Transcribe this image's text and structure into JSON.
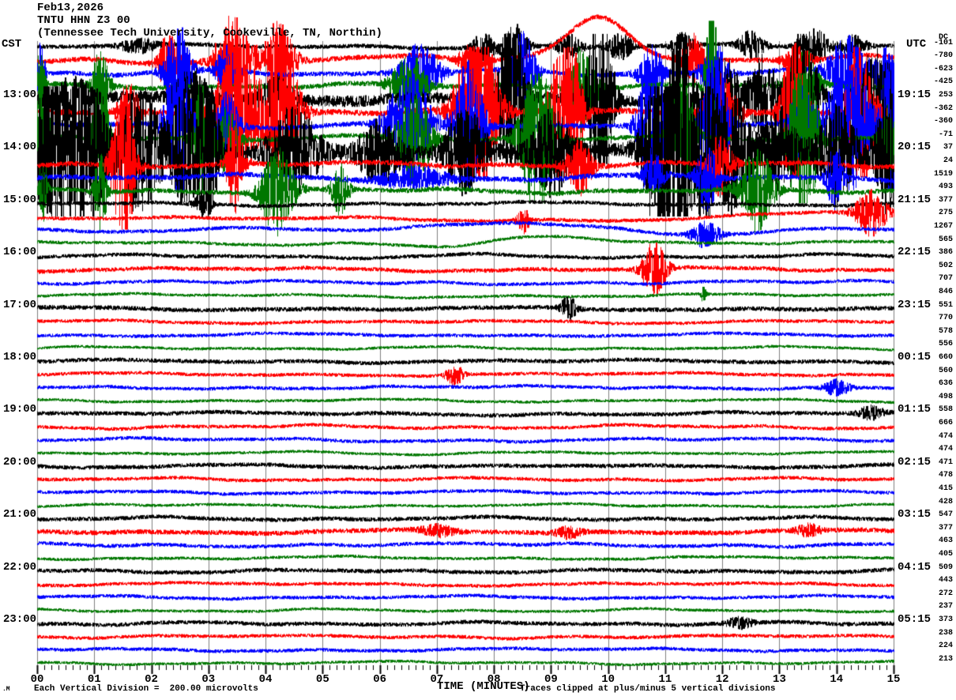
{
  "title": {
    "date": "Feb13,2026",
    "station": "TNTU HHN Z3 00",
    "location": "(Tennessee Tech University, Cookeville, TN, Northin)"
  },
  "axes": {
    "left_header": "CST",
    "right_header": "UTC",
    "dc_header": "DC",
    "x_label": "TIME (MINUTES)",
    "x_tick_labels": [
      "00",
      "01",
      "02",
      "03",
      "04",
      "05",
      "06",
      "07",
      "08",
      "09",
      "10",
      "11",
      "12",
      "13",
      "14",
      "15"
    ]
  },
  "footer": {
    "tiny_glyph": ".M",
    "left_note": "Each Vertical Division =  200.00 microvolts",
    "right_note": "Traces clipped at plus/minus 5 vertical divisions"
  },
  "colors": {
    "trace_cycle": [
      "#000000",
      "#ff0000",
      "#0000ff",
      "#007700"
    ],
    "grid": "#808080",
    "background": "#ffffff",
    "text": "#000000"
  },
  "chart_data": {
    "type": "line",
    "kind": "helicorder",
    "x_axis": {
      "label": "TIME (MINUTES)",
      "min": 0,
      "max": 15,
      "minor_ticks_per_minute": 8
    },
    "vertical_division_microvolts": 200.0,
    "clip_divisions": 5,
    "rows": [
      {
        "cst": "",
        "utc": "",
        "dc": -101,
        "color": "black",
        "noise": 2.5,
        "wander": 3,
        "bursts": [
          [
            1.8,
            8,
            0.5
          ],
          [
            7.8,
            20,
            0.25
          ],
          [
            8.35,
            28,
            0.3
          ],
          [
            9.3,
            14,
            0.3
          ],
          [
            10.2,
            16,
            0.3
          ],
          [
            11.3,
            16,
            0.25
          ],
          [
            12.5,
            18,
            0.3
          ],
          [
            13.6,
            22,
            0.35
          ],
          [
            14.3,
            14,
            0.3
          ]
        ],
        "swells": []
      },
      {
        "cst": "",
        "utc": "",
        "dc": -780,
        "color": "red",
        "noise": 3,
        "wander": 6,
        "bursts": [
          [
            2.3,
            40,
            0.25
          ],
          [
            3.4,
            55,
            0.4
          ],
          [
            4.2,
            45,
            0.4
          ],
          [
            7.6,
            20,
            0.3
          ],
          [
            11.5,
            30,
            0.3
          ],
          [
            13.3,
            20,
            0.3
          ]
        ],
        "swells": [
          [
            9.85,
            56,
            0.55
          ]
        ]
      },
      {
        "cst": "",
        "utc": "",
        "dc": -623,
        "color": "blue",
        "noise": 2.8,
        "wander": 5,
        "bursts": [
          [
            0.05,
            40,
            0.1
          ],
          [
            2.45,
            60,
            0.3
          ],
          [
            3.3,
            30,
            0.25
          ],
          [
            6.7,
            40,
            0.45
          ],
          [
            8.5,
            50,
            0.3
          ],
          [
            10.75,
            35,
            0.3
          ],
          [
            11.85,
            45,
            0.3
          ],
          [
            14.2,
            45,
            0.5
          ],
          [
            14.85,
            40,
            0.25
          ]
        ],
        "swells": []
      },
      {
        "cst": "",
        "utc": "",
        "dc": -425,
        "color": "green",
        "noise": 3,
        "wander": 4,
        "bursts": [
          [
            0.05,
            50,
            0.1
          ],
          [
            1.1,
            45,
            0.2
          ],
          [
            6.5,
            40,
            0.4
          ],
          [
            9.55,
            55,
            0.35
          ],
          [
            11.8,
            120,
            0.15
          ],
          [
            13.4,
            45,
            0.35
          ]
        ],
        "swells": []
      },
      {
        "cst": "13:00",
        "utc": "19:15",
        "dc": 253,
        "color": "black",
        "noise": 7,
        "wander": 4,
        "bursts": [
          [
            0.6,
            25,
            0.5
          ],
          [
            2.7,
            35,
            0.4
          ],
          [
            4.2,
            25,
            0.4
          ],
          [
            8.3,
            130,
            0.3
          ],
          [
            9.85,
            130,
            0.3
          ],
          [
            11.27,
            120,
            0.25
          ],
          [
            12.0,
            55,
            0.4
          ],
          [
            12.7,
            50,
            0.35
          ],
          [
            13.4,
            110,
            0.3
          ],
          [
            14.7,
            70,
            0.4
          ]
        ],
        "swells": []
      },
      {
        "cst": "",
        "utc": "",
        "dc": -362,
        "color": "red",
        "noise": 3.5,
        "wander": 4,
        "bursts": [
          [
            1.6,
            38,
            0.25
          ],
          [
            3.5,
            105,
            0.5
          ],
          [
            4.3,
            85,
            0.4
          ],
          [
            7.7,
            115,
            0.5
          ],
          [
            9.25,
            125,
            0.35
          ],
          [
            11.95,
            55,
            0.4
          ],
          [
            13.25,
            105,
            0.3
          ],
          [
            14.4,
            100,
            0.35
          ]
        ],
        "swells": []
      },
      {
        "cst": "",
        "utc": "",
        "dc": -360,
        "color": "blue",
        "noise": 3,
        "wander": 4,
        "bursts": [
          [
            2.45,
            125,
            0.3
          ],
          [
            3.3,
            45,
            0.3
          ],
          [
            6.5,
            70,
            0.5
          ],
          [
            7.55,
            85,
            0.35
          ],
          [
            10.75,
            125,
            0.3
          ],
          [
            11.85,
            125,
            0.3
          ],
          [
            13.4,
            50,
            0.3
          ],
          [
            14.2,
            95,
            0.5
          ],
          [
            14.95,
            125,
            0.2
          ]
        ],
        "swells": []
      },
      {
        "cst": "",
        "utc": "",
        "dc": -71,
        "color": "green",
        "noise": 2.8,
        "wander": 4,
        "bursts": [
          [
            0.08,
            125,
            0.15
          ],
          [
            1.1,
            100,
            0.2
          ],
          [
            2.85,
            70,
            0.2
          ],
          [
            3.3,
            40,
            0.3
          ],
          [
            6.6,
            60,
            0.4
          ],
          [
            8.75,
            105,
            0.4
          ],
          [
            11.3,
            75,
            0.3
          ],
          [
            13.4,
            125,
            0.35
          ],
          [
            14.9,
            45,
            0.2
          ]
        ],
        "swells": []
      },
      {
        "cst": "14:00",
        "utc": "20:15",
        "dc": 37,
        "color": "black",
        "noise": 8,
        "wander": 4,
        "bursts": [
          [
            0.3,
            105,
            0.5
          ],
          [
            0.9,
            90,
            0.4
          ],
          [
            1.8,
            80,
            0.5
          ],
          [
            2.6,
            70,
            0.4
          ],
          [
            3.0,
            80,
            0.25
          ],
          [
            4.5,
            50,
            0.6
          ],
          [
            6.0,
            40,
            0.5
          ],
          [
            7.5,
            50,
            0.5
          ],
          [
            9.0,
            50,
            0.5
          ],
          [
            10.9,
            120,
            0.4
          ],
          [
            11.27,
            115,
            0.3
          ],
          [
            11.7,
            95,
            0.3
          ],
          [
            12.2,
            80,
            0.4
          ],
          [
            13.0,
            50,
            0.4
          ],
          [
            14.0,
            60,
            0.5
          ],
          [
            14.9,
            75,
            0.3
          ]
        ],
        "swells": []
      },
      {
        "cst": "",
        "utc": "",
        "dc": 24,
        "color": "red",
        "noise": 3,
        "wander": 4,
        "bursts": [
          [
            1.5,
            100,
            0.28
          ],
          [
            3.45,
            65,
            0.2
          ],
          [
            9.5,
            35,
            0.3
          ],
          [
            11.95,
            40,
            0.3
          ]
        ],
        "swells": []
      },
      {
        "cst": "",
        "utc": "",
        "dc": 1519,
        "color": "blue",
        "noise": 3,
        "wander": 5,
        "bursts": [
          [
            6.6,
            15,
            0.8
          ],
          [
            10.8,
            25,
            0.25
          ],
          [
            11.73,
            45,
            0.25
          ],
          [
            13.95,
            40,
            0.2
          ]
        ],
        "swells": []
      },
      {
        "cst": "",
        "utc": "",
        "dc": 493,
        "color": "green",
        "noise": 2.8,
        "wander": 4,
        "bursts": [
          [
            0.1,
            40,
            0.1
          ],
          [
            1.1,
            50,
            0.15
          ],
          [
            4.2,
            55,
            0.4
          ],
          [
            5.3,
            32,
            0.2
          ],
          [
            12.6,
            55,
            0.4
          ]
        ],
        "swells": []
      },
      {
        "cst": "15:00",
        "utc": "21:15",
        "dc": 377,
        "color": "black",
        "noise": 2.2,
        "wander": 3,
        "bursts": [
          [
            2.9,
            18,
            0.2
          ]
        ],
        "swells": []
      },
      {
        "cst": "",
        "utc": "",
        "dc": 275,
        "color": "red",
        "noise": 2.2,
        "wander": 3,
        "bursts": [
          [
            8.5,
            16,
            0.15
          ],
          [
            14.6,
            28,
            0.4
          ]
        ],
        "swells": [
          [
            8.3,
            -6,
            2.0
          ],
          [
            13.8,
            8,
            1.2
          ]
        ]
      },
      {
        "cst": "",
        "utc": "",
        "dc": 1267,
        "color": "blue",
        "noise": 2.2,
        "wander": 3,
        "bursts": [
          [
            11.7,
            16,
            0.35
          ]
        ],
        "swells": [
          [
            8.5,
            8,
            1.8
          ],
          [
            11.3,
            -7,
            1.0
          ]
        ]
      },
      {
        "cst": "",
        "utc": "",
        "dc": 565,
        "color": "green",
        "noise": 1.8,
        "wander": 3,
        "bursts": [],
        "swells": [
          [
            7.3,
            -8,
            0.8
          ],
          [
            8.9,
            9,
            1.2
          ]
        ]
      },
      {
        "cst": "16:00",
        "utc": "22:15",
        "dc": 386,
        "color": "black",
        "noise": 2.2,
        "wander": 3.5,
        "bursts": [],
        "swells": []
      },
      {
        "cst": "",
        "utc": "",
        "dc": 502,
        "color": "red",
        "noise": 2.4,
        "wander": 3,
        "bursts": [
          [
            10.8,
            34,
            0.3
          ]
        ],
        "swells": []
      },
      {
        "cst": "",
        "utc": "",
        "dc": 707,
        "color": "blue",
        "noise": 2,
        "wander": 3,
        "bursts": [],
        "swells": []
      },
      {
        "cst": "",
        "utc": "",
        "dc": 846,
        "color": "green",
        "noise": 1.7,
        "wander": 3,
        "bursts": [
          [
            11.66,
            10,
            0.06
          ]
        ],
        "swells": []
      },
      {
        "cst": "17:00",
        "utc": "23:15",
        "dc": 551,
        "color": "black",
        "noise": 2.6,
        "wander": 2.5,
        "bursts": [
          [
            9.3,
            14,
            0.2
          ]
        ],
        "swells": []
      },
      {
        "cst": "",
        "utc": "",
        "dc": 770,
        "color": "red",
        "noise": 2,
        "wander": 2.5,
        "bursts": [],
        "swells": []
      },
      {
        "cst": "",
        "utc": "",
        "dc": 578,
        "color": "blue",
        "noise": 2,
        "wander": 2.5,
        "bursts": [],
        "swells": []
      },
      {
        "cst": "",
        "utc": "",
        "dc": 556,
        "color": "green",
        "noise": 1.6,
        "wander": 2.5,
        "bursts": [],
        "swells": []
      },
      {
        "cst": "18:00",
        "utc": "00:15",
        "dc": 660,
        "color": "black",
        "noise": 2.4,
        "wander": 2.5,
        "bursts": [],
        "swells": []
      },
      {
        "cst": "",
        "utc": "",
        "dc": 560,
        "color": "red",
        "noise": 2,
        "wander": 2.5,
        "bursts": [
          [
            7.3,
            13,
            0.2
          ]
        ],
        "swells": []
      },
      {
        "cst": "",
        "utc": "",
        "dc": 636,
        "color": "blue",
        "noise": 2,
        "wander": 2.5,
        "bursts": [
          [
            14.0,
            10,
            0.3
          ]
        ],
        "swells": []
      },
      {
        "cst": "",
        "utc": "",
        "dc": 498,
        "color": "green",
        "noise": 1.6,
        "wander": 2.5,
        "bursts": [],
        "swells": []
      },
      {
        "cst": "19:00",
        "utc": "01:15",
        "dc": 558,
        "color": "black",
        "noise": 2.4,
        "wander": 2.5,
        "bursts": [
          [
            14.6,
            8,
            0.3
          ]
        ],
        "swells": []
      },
      {
        "cst": "",
        "utc": "",
        "dc": 666,
        "color": "red",
        "noise": 2,
        "wander": 3,
        "bursts": [],
        "swells": []
      },
      {
        "cst": "",
        "utc": "",
        "dc": 474,
        "color": "blue",
        "noise": 2,
        "wander": 3,
        "bursts": [],
        "swells": []
      },
      {
        "cst": "",
        "utc": "",
        "dc": 474,
        "color": "green",
        "noise": 1.6,
        "wander": 2.5,
        "bursts": [],
        "swells": []
      },
      {
        "cst": "20:00",
        "utc": "02:15",
        "dc": 471,
        "color": "black",
        "noise": 2.4,
        "wander": 2.5,
        "bursts": [],
        "swells": []
      },
      {
        "cst": "",
        "utc": "",
        "dc": 478,
        "color": "red",
        "noise": 2,
        "wander": 2.5,
        "bursts": [],
        "swells": []
      },
      {
        "cst": "",
        "utc": "",
        "dc": 415,
        "color": "blue",
        "noise": 2,
        "wander": 2.5,
        "bursts": [],
        "swells": []
      },
      {
        "cst": "",
        "utc": "",
        "dc": 428,
        "color": "green",
        "noise": 1.6,
        "wander": 2.5,
        "bursts": [],
        "swells": []
      },
      {
        "cst": "21:00",
        "utc": "03:15",
        "dc": 547,
        "color": "black",
        "noise": 2.4,
        "wander": 2.5,
        "bursts": [],
        "swells": []
      },
      {
        "cst": "",
        "utc": "",
        "dc": 377,
        "color": "red",
        "noise": 2.8,
        "wander": 3,
        "bursts": [
          [
            7.0,
            7,
            0.4
          ],
          [
            9.3,
            7,
            0.3
          ],
          [
            13.5,
            7,
            0.3
          ]
        ],
        "swells": []
      },
      {
        "cst": "",
        "utc": "",
        "dc": 463,
        "color": "blue",
        "noise": 2.2,
        "wander": 3,
        "bursts": [],
        "swells": []
      },
      {
        "cst": "",
        "utc": "",
        "dc": 405,
        "color": "green",
        "noise": 1.7,
        "wander": 2.5,
        "bursts": [],
        "swells": []
      },
      {
        "cst": "22:00",
        "utc": "04:15",
        "dc": 509,
        "color": "black",
        "noise": 2.4,
        "wander": 2.5,
        "bursts": [],
        "swells": []
      },
      {
        "cst": "",
        "utc": "",
        "dc": 443,
        "color": "red",
        "noise": 2,
        "wander": 2.5,
        "bursts": [],
        "swells": []
      },
      {
        "cst": "",
        "utc": "",
        "dc": 272,
        "color": "blue",
        "noise": 2,
        "wander": 2.5,
        "bursts": [],
        "swells": []
      },
      {
        "cst": "",
        "utc": "",
        "dc": 237,
        "color": "green",
        "noise": 1.6,
        "wander": 2.5,
        "bursts": [],
        "swells": []
      },
      {
        "cst": "23:00",
        "utc": "05:15",
        "dc": 373,
        "color": "black",
        "noise": 2.4,
        "wander": 2.5,
        "bursts": [
          [
            12.3,
            7,
            0.3
          ]
        ],
        "swells": []
      },
      {
        "cst": "",
        "utc": "",
        "dc": 238,
        "color": "red",
        "noise": 2,
        "wander": 2.5,
        "bursts": [],
        "swells": []
      },
      {
        "cst": "",
        "utc": "",
        "dc": 224,
        "color": "blue",
        "noise": 2,
        "wander": 2.5,
        "bursts": [],
        "swells": []
      },
      {
        "cst": "",
        "utc": "",
        "dc": 213,
        "color": "green",
        "noise": 1.6,
        "wander": 2.5,
        "bursts": [],
        "swells": []
      }
    ]
  }
}
